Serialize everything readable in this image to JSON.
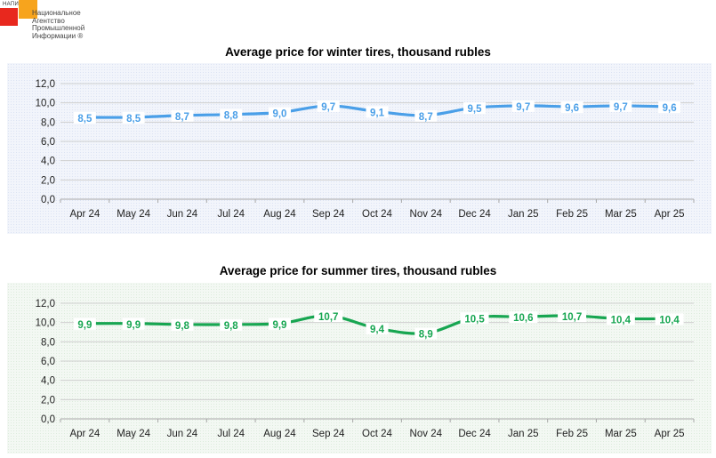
{
  "logo": {
    "short": "НАПИ",
    "name": "Национальное\nАгентство\nПромышленной\nИнформации ®"
  },
  "colors": {
    "winter": "#4a9fe8",
    "summer": "#17a651",
    "grid": "#c8c8c8"
  },
  "chart_data": [
    {
      "type": "line",
      "title": "Average price for winter tires, thousand rubles",
      "categories": [
        "Apr 24",
        "May 24",
        "Jun 24",
        "Jul 24",
        "Aug 24",
        "Sep 24",
        "Oct 24",
        "Nov 24",
        "Dec 24",
        "Jan 25",
        "Feb 25",
        "Mar 25",
        "Apr 25"
      ],
      "values": [
        8.5,
        8.5,
        8.7,
        8.8,
        9.0,
        9.7,
        9.1,
        8.7,
        9.5,
        9.7,
        9.6,
        9.7,
        9.6
      ],
      "data_labels": [
        "8,5",
        "8,5",
        "8,7",
        "8,8",
        "9,0",
        "9,7",
        "9,1",
        "8,7",
        "9,5",
        "9,7",
        "9,6",
        "9,7",
        "9,6"
      ],
      "yticks": [
        "0,0",
        "2,0",
        "4,0",
        "6,0",
        "8,0",
        "10,0",
        "12,0"
      ],
      "ylim": [
        0,
        12
      ],
      "grid": true,
      "color": "#4a9fe8"
    },
    {
      "type": "line",
      "title": "Average price for summer tires, thousand rubles",
      "categories": [
        "Apr 24",
        "May 24",
        "Jun 24",
        "Jul 24",
        "Aug 24",
        "Sep 24",
        "Oct 24",
        "Nov 24",
        "Dec 24",
        "Jan 25",
        "Feb 25",
        "Mar 25",
        "Apr 25"
      ],
      "values": [
        9.9,
        9.9,
        9.8,
        9.8,
        9.9,
        10.7,
        9.4,
        8.9,
        10.5,
        10.6,
        10.7,
        10.4,
        10.4
      ],
      "data_labels": [
        "9,9",
        "9,9",
        "9,8",
        "9,8",
        "9,9",
        "10,7",
        "9,4",
        "8,9",
        "10,5",
        "10,6",
        "10,7",
        "10,4",
        "10,4"
      ],
      "yticks": [
        "0,0",
        "2,0",
        "4,0",
        "6,0",
        "8,0",
        "10,0",
        "12,0"
      ],
      "ylim": [
        0,
        12
      ],
      "grid": true,
      "color": "#17a651"
    }
  ]
}
